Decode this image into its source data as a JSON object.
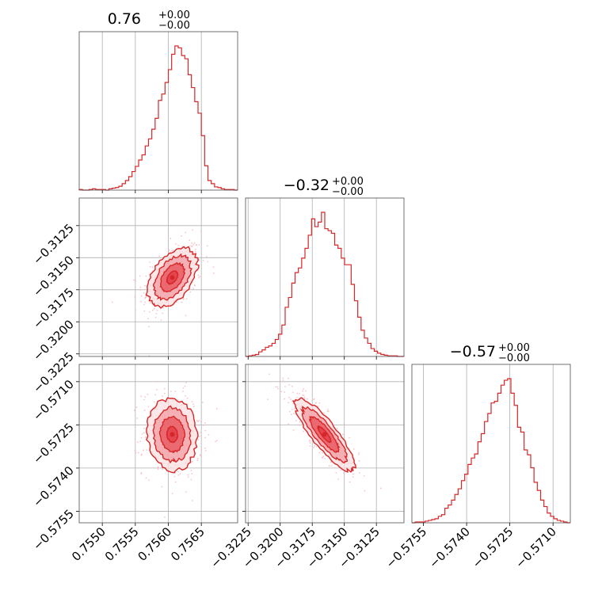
{
  "figure": {
    "colors": {
      "primary": "#d62728",
      "fill_dark": "#e8525a",
      "fill_mid": "#f19ea3",
      "fill_light": "#fbe0e2",
      "points": "#f4b6bb"
    }
  },
  "chart_data": {
    "type": "corner",
    "parameters": [
      {
        "title_value": "0.76",
        "title_plus": "+0.00",
        "title_minus": "−0.00",
        "range": [
          0.75465,
          0.75705
        ],
        "ticks": [
          0.755,
          0.7555,
          0.756,
          0.7565
        ],
        "tick_labels": [
          "0.7550",
          "0.7555",
          "0.7560",
          "0.7565"
        ],
        "mean": 0.75606,
        "sigma": 0.00018,
        "hist_counts": [
          1,
          0,
          0,
          1,
          2,
          1,
          1,
          1,
          0,
          2,
          3,
          4,
          6,
          10,
          15,
          21,
          29,
          37,
          47,
          55,
          69,
          80,
          95,
          112,
          140,
          150,
          168,
          188,
          212,
          225,
          222,
          210,
          205,
          180,
          160,
          138,
          120,
          85,
          38,
          15,
          10,
          5,
          4,
          2,
          1,
          1,
          1,
          0
        ]
      },
      {
        "title_value": "−0.32",
        "title_plus": "+0.00",
        "title_minus": "−0.00",
        "range": [
          -0.3227,
          -0.31035
        ],
        "ticks": [
          -0.3225,
          -0.32,
          -0.3175,
          -0.315,
          -0.3125
        ],
        "tick_labels": [
          "−0.3225",
          "−0.3200",
          "−0.3175",
          "−0.3150",
          "−0.3125"
        ],
        "mean": -0.31655,
        "sigma": 0.0011,
        "hist_counts": [
          0,
          1,
          2,
          3,
          7,
          10,
          14,
          16,
          20,
          26,
          34,
          48,
          75,
          90,
          112,
          128,
          135,
          150,
          165,
          185,
          210,
          198,
          205,
          220,
          195,
          192,
          188,
          170,
          165,
          150,
          140,
          140,
          110,
          85,
          60,
          40,
          28,
          20,
          12,
          8,
          5,
          3,
          2,
          1,
          1,
          1,
          0,
          0
        ]
      },
      {
        "title_value": "−0.57",
        "title_plus": "+0.00",
        "title_minus": "−0.00",
        "range": [
          -0.5759,
          -0.5704
        ],
        "ticks": [
          -0.5755,
          -0.574,
          -0.5725,
          -0.571
        ],
        "tick_labels": [
          "−0.5755",
          "−0.5740",
          "−0.5725",
          "−0.5710"
        ],
        "mean": -0.57283,
        "sigma": 0.0006,
        "hist_counts": [
          0,
          1,
          1,
          1,
          2,
          3,
          4,
          5,
          8,
          10,
          18,
          22,
          28,
          35,
          42,
          52,
          60,
          72,
          80,
          85,
          100,
          110,
          125,
          135,
          148,
          150,
          160,
          170,
          176,
          178,
          160,
          145,
          118,
          112,
          90,
          84,
          68,
          50,
          40,
          28,
          20,
          12,
          8,
          5,
          3,
          2,
          1,
          0
        ]
      }
    ],
    "correlations": {
      "1-0": 0.45,
      "2-0": -0.05,
      "2-1": -0.85
    }
  }
}
